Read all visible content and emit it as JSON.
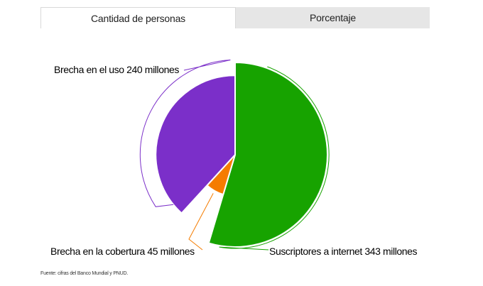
{
  "tabs": [
    {
      "label": "Cantidad de personas",
      "active": true
    },
    {
      "label": "Porcentaje",
      "active": false
    }
  ],
  "chart_data": {
    "type": "pie",
    "title": "",
    "series": [
      {
        "name": "Suscriptores a internet",
        "value": 343,
        "label": "Suscriptores a internet 343 millones",
        "color": "#17a300"
      },
      {
        "name": "Brecha en la cobertura",
        "value": 45,
        "label": "Brecha en la cobertura 45 millones",
        "color": "#f57c00"
      },
      {
        "name": "Brecha en el uso",
        "value": 240,
        "label": "Brecha en el uso 240 millones",
        "color": "#7b2fc9"
      }
    ],
    "legend": "none"
  },
  "source": "Fuente: cifras del Banco Mundial y PNUD."
}
